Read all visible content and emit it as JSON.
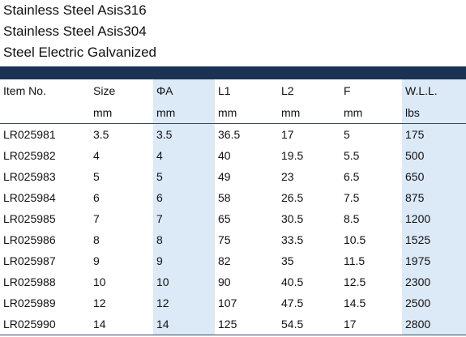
{
  "titles": [
    "Stainless Steel Asis316",
    "Stainless Steel Asis304",
    "Steel Electric Galvanized"
  ],
  "band_color": "#1a3354",
  "shade_color": "#dce9f7",
  "table": {
    "headers": [
      "Item No.",
      "Size",
      "ΦA",
      "L1",
      "L2",
      "F",
      "W.L.L."
    ],
    "units": [
      "",
      "mm",
      "mm",
      "mm",
      "mm",
      "mm",
      "lbs"
    ],
    "rows": [
      [
        "LR025981",
        "3.5",
        "3.5",
        "36.5",
        "17",
        "5",
        "175"
      ],
      [
        "LR025982",
        "4",
        "4",
        "40",
        "19.5",
        "5.5",
        "500"
      ],
      [
        "LR025983",
        "5",
        "5",
        "49",
        "23",
        "6.5",
        "650"
      ],
      [
        "LR025984",
        "6",
        "6",
        "58",
        "26.5",
        "7.5",
        "875"
      ],
      [
        "LR025985",
        "7",
        "7",
        "65",
        "30.5",
        "8.5",
        "1200"
      ],
      [
        "LR025986",
        "8",
        "8",
        "75",
        "33.5",
        "10.5",
        "1525"
      ],
      [
        "LR025987",
        "9",
        "9",
        "82",
        "35",
        "11.5",
        "1975"
      ],
      [
        "LR025988",
        "10",
        "10",
        "90",
        "40.5",
        "12.5",
        "2300"
      ],
      [
        "LR025989",
        "12",
        "12",
        "107",
        "47.5",
        "14.5",
        "2500"
      ],
      [
        "LR025990",
        "14",
        "14",
        "125",
        "54.5",
        "17",
        "2800"
      ]
    ]
  }
}
